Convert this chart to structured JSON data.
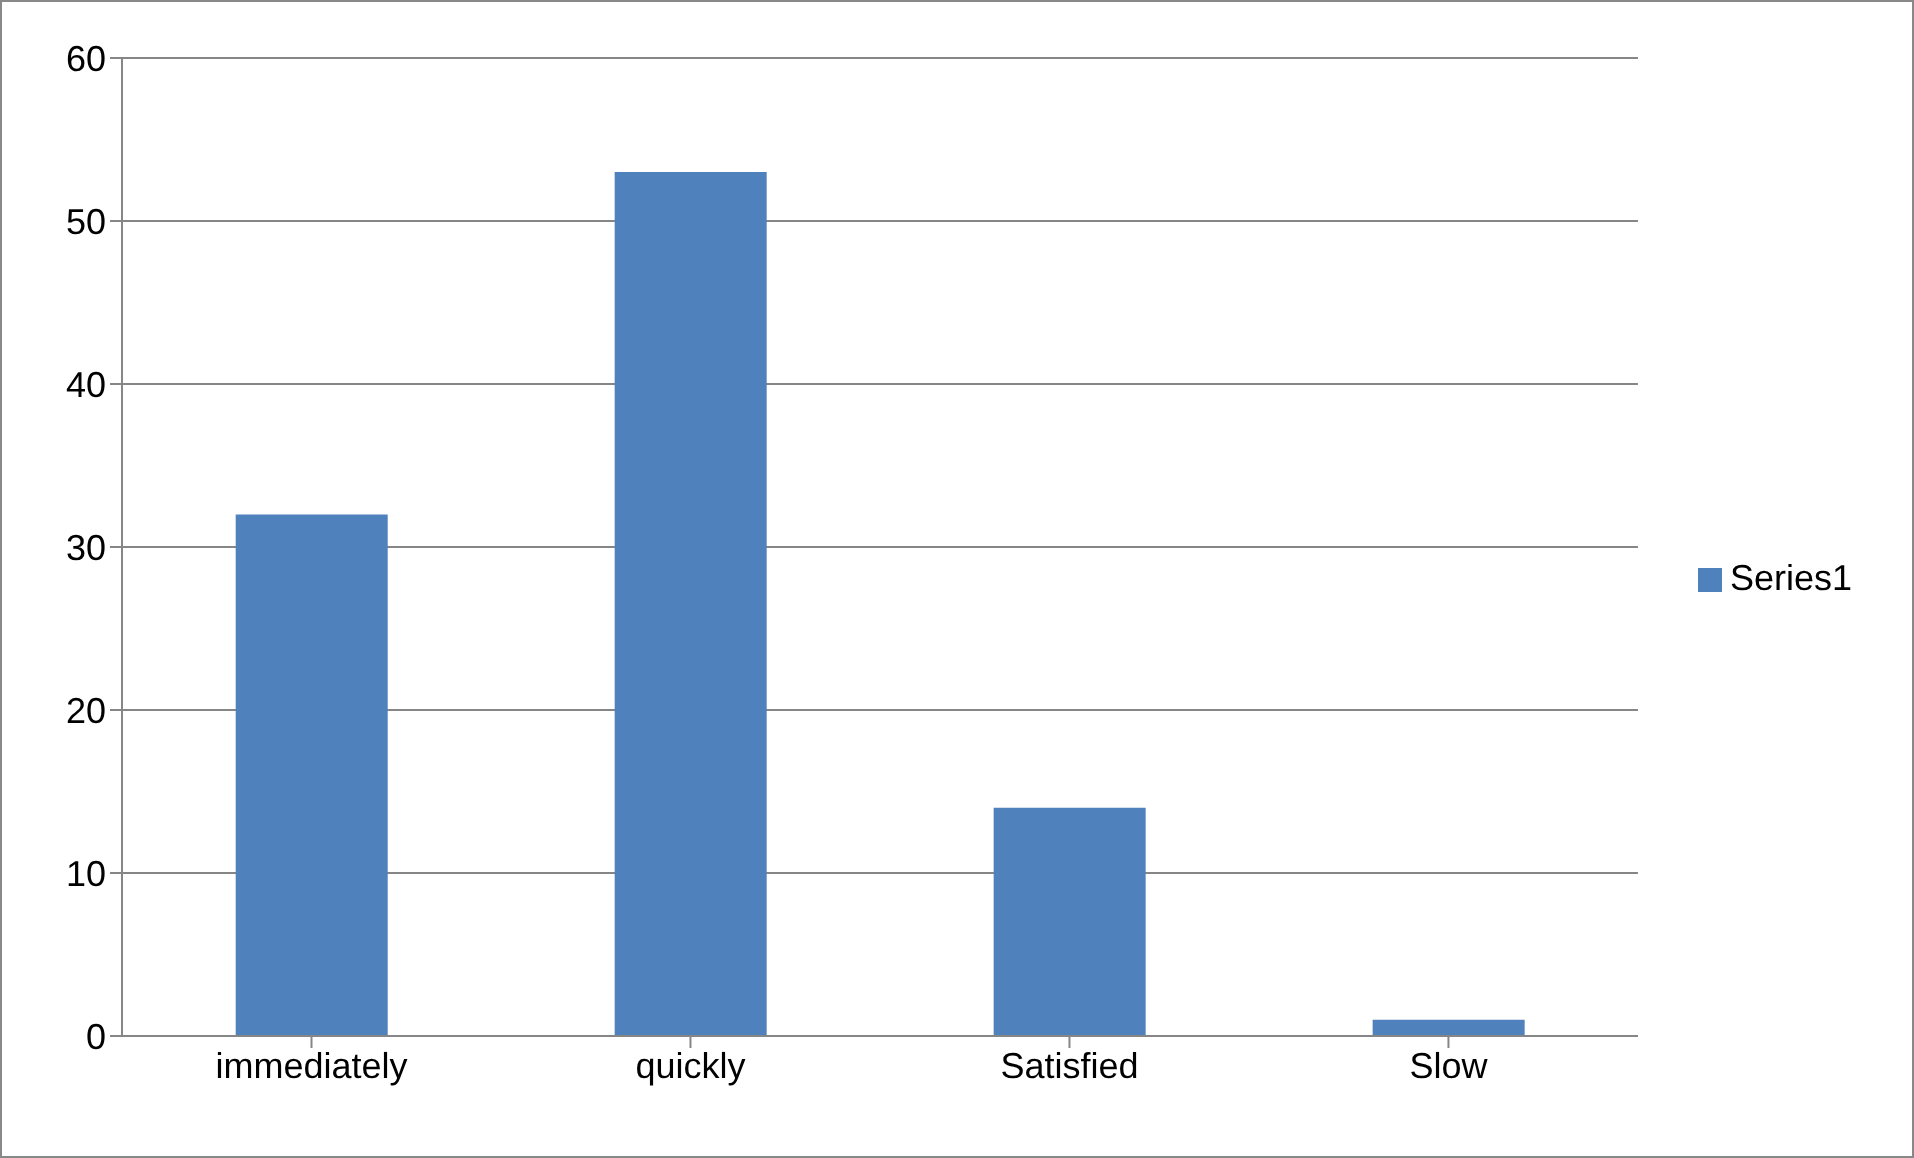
{
  "chart_data": {
    "type": "bar",
    "categories": [
      "immediately",
      "quickly",
      "Satisfied",
      "Slow"
    ],
    "series": [
      {
        "name": "Series1",
        "color": "#4f81bd",
        "values": [
          32,
          53,
          14,
          1
        ]
      }
    ],
    "ylim": [
      0,
      60
    ],
    "yticks": [
      0,
      10,
      20,
      30,
      40,
      50,
      60
    ],
    "grid": "y",
    "legend": "right"
  }
}
